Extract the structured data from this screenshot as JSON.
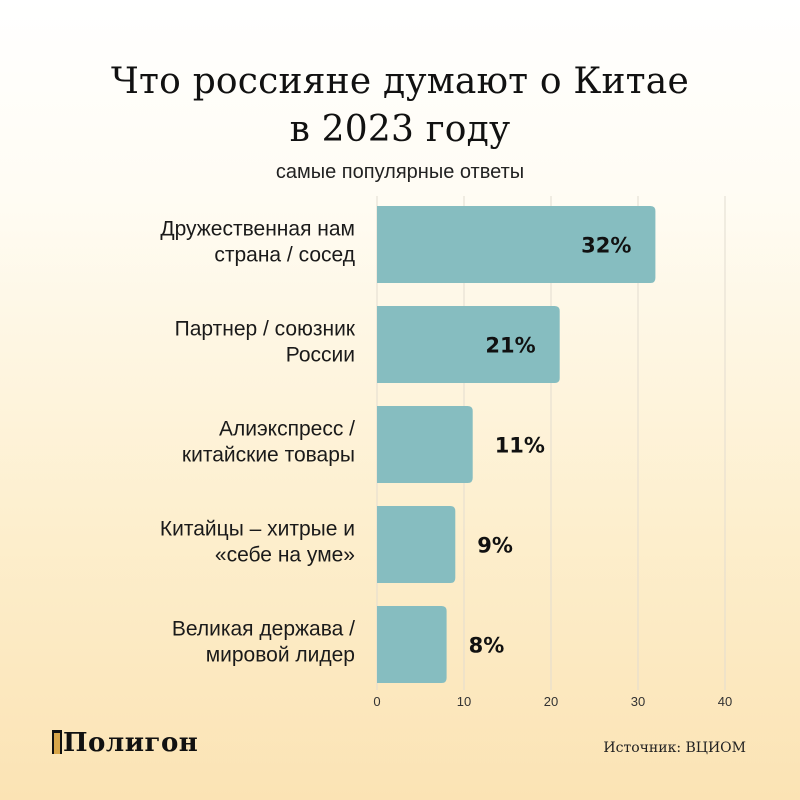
{
  "title_lines": [
    "Что россияне думают о Китае",
    "в 2023 году"
  ],
  "subtitle": "самые популярные ответы",
  "logo": "Полигон",
  "source": "Источник: ВЦИОМ",
  "colors": {
    "bar": "#86bdc0",
    "grid": "#e2dcd0"
  },
  "chart_data": {
    "type": "bar",
    "orientation": "horizontal",
    "categories": [
      [
        "Дружественная нам",
        "страна / сосед"
      ],
      [
        "Партнер / союзник",
        "России"
      ],
      [
        "Алиэкспресс /",
        "китайские товары"
      ],
      [
        "Китайцы – хитрые и",
        "«себе на уме»"
      ],
      [
        "Великая держава /",
        "мировой лидер"
      ]
    ],
    "values": [
      32,
      21,
      11,
      9,
      8
    ],
    "value_labels": [
      "32%",
      "21%",
      "11%",
      "9%",
      "8%"
    ],
    "xlim": [
      0,
      40
    ],
    "xticks": [
      0,
      10,
      20,
      30,
      40
    ],
    "grid": true
  }
}
